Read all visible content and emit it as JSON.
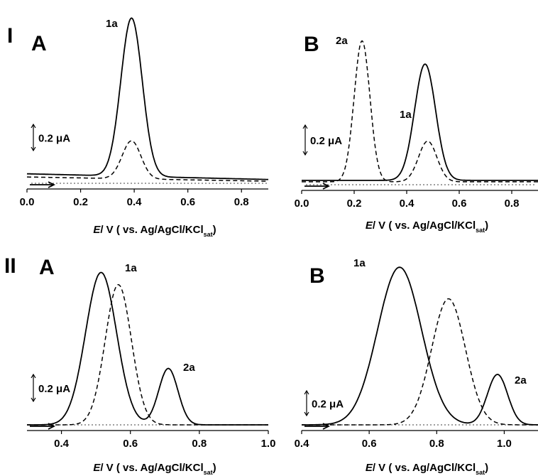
{
  "chart_data": [
    {
      "type": "line",
      "panel_label": "A",
      "row_label": "I",
      "xlabel": {
        "italic": "E",
        "rest": "/ V",
        "paren": "( vs. Ag/AgCl/KCl",
        "sub": "sat",
        "close": ")"
      },
      "xlim": [
        0.0,
        0.9
      ],
      "xticks": [
        "0.0",
        "0.2",
        "0.4",
        "0.6",
        "0.8"
      ],
      "xtick_values": [
        0.0,
        0.2,
        0.4,
        0.6,
        0.8
      ],
      "scale_bar": "0.2 μA",
      "scale_bar_uA": 0.2,
      "ylim_uA": [
        0,
        1.1
      ],
      "annotations": [
        "1a"
      ],
      "series": [
        {
          "style": "solid",
          "peaks": [
            {
              "x": 0.39,
              "height_uA": 1.0,
              "width": 0.04
            }
          ],
          "baseline_uA": 0.06,
          "baseline_slope": -0.04
        },
        {
          "style": "dashed",
          "peaks": [
            {
              "x": 0.39,
              "height_uA": 0.24,
              "width": 0.035
            }
          ],
          "baseline_uA": 0.04,
          "baseline_slope": -0.03
        }
      ]
    },
    {
      "type": "line",
      "panel_label": "B",
      "row_label": "",
      "xlabel": {
        "italic": "E",
        "rest": "/ V",
        "paren": "( vs. Ag/AgCl/KCl",
        "sub": "sat",
        "close": ")"
      },
      "xlim": [
        0.0,
        0.9
      ],
      "xticks": [
        "0.0",
        "0.2",
        "0.4",
        "0.6",
        "0.8"
      ],
      "xtick_values": [
        0.0,
        0.2,
        0.4,
        0.6,
        0.8
      ],
      "scale_bar": "0.2 μA",
      "scale_bar_uA": 0.2,
      "ylim_uA": [
        0,
        1.1
      ],
      "annotations": [
        "2a",
        "1a"
      ],
      "series": [
        {
          "style": "solid",
          "peaks": [
            {
              "x": 0.47,
              "height_uA": 0.8,
              "width": 0.04
            }
          ],
          "baseline_uA": 0.03,
          "baseline_slope": 0.0
        },
        {
          "style": "dashed",
          "peaks": [
            {
              "x": 0.23,
              "height_uA": 0.97,
              "width": 0.03
            },
            {
              "x": 0.48,
              "height_uA": 0.28,
              "width": 0.035
            }
          ],
          "baseline_uA": 0.02,
          "baseline_slope": 0.0
        }
      ]
    },
    {
      "type": "line",
      "panel_label": "A",
      "row_label": "II",
      "xlabel": {
        "italic": "E",
        "rest": "/ V",
        "paren": "( vs. Ag/AgCl/KCl",
        "sub": "sat",
        "close": ")"
      },
      "xlim": [
        0.3,
        1.0
      ],
      "xticks": [
        "0.4",
        "0.6",
        "0.8",
        "1.0"
      ],
      "xtick_values": [
        0.4,
        0.6,
        0.8,
        1.0
      ],
      "scale_bar": "0.2 μA",
      "scale_bar_uA": 0.2,
      "ylim_uA": [
        0,
        1.1
      ],
      "annotations": [
        "1a",
        "2a"
      ],
      "series": [
        {
          "style": "solid",
          "peaks": [
            {
              "x": 0.515,
              "height_uA": 1.0,
              "width": 0.045
            },
            {
              "x": 0.71,
              "height_uA": 0.37,
              "width": 0.028
            }
          ],
          "baseline_uA": 0.0,
          "baseline_slope": 0.0
        },
        {
          "style": "dashed",
          "peaks": [
            {
              "x": 0.565,
              "height_uA": 0.92,
              "width": 0.038
            }
          ],
          "baseline_uA": 0.0,
          "baseline_slope": 0.0
        }
      ]
    },
    {
      "type": "line",
      "panel_label": "B",
      "row_label": "",
      "xlabel": {
        "italic": "E",
        "rest": "/ V",
        "paren": "( vs. Ag/AgCl/KCl",
        "sub": "sat",
        "close": ")"
      },
      "xlim": [
        0.4,
        1.1
      ],
      "xticks": [
        "0.4",
        "0.6",
        "0.8",
        "1.0"
      ],
      "xtick_values": [
        0.4,
        0.6,
        0.8,
        1.0
      ],
      "scale_bar": "0.2 μA",
      "scale_bar_uA": 0.2,
      "ylim_uA": [
        0,
        1.1
      ],
      "annotations": [
        "1a",
        "2a"
      ],
      "series": [
        {
          "style": "solid",
          "peaks": [
            {
              "x": 0.69,
              "height_uA": 1.0,
              "width": 0.065
            },
            {
              "x": 0.98,
              "height_uA": 0.32,
              "width": 0.03
            }
          ],
          "baseline_uA": 0.0,
          "baseline_slope": 0.0
        },
        {
          "style": "dashed",
          "peaks": [
            {
              "x": 0.835,
              "height_uA": 0.8,
              "width": 0.05
            }
          ],
          "baseline_uA": 0.0,
          "baseline_slope": 0.0
        }
      ]
    }
  ]
}
